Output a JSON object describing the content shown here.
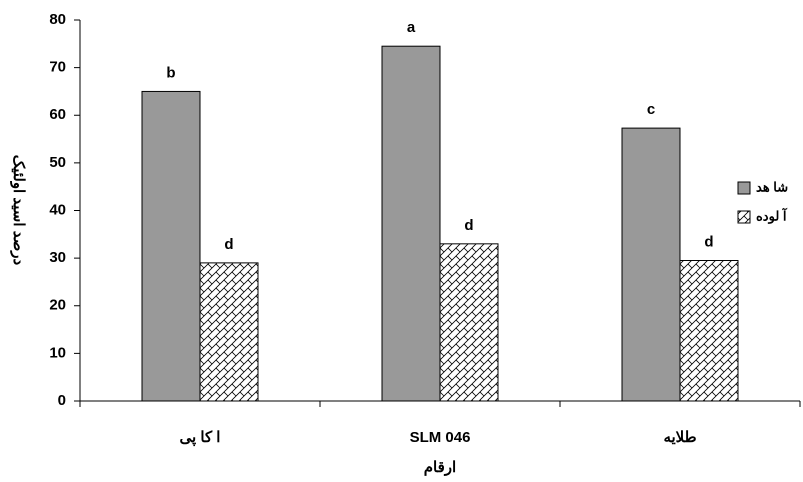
{
  "chart_data": {
    "type": "bar",
    "y_label": "درصد اسید اولئیک",
    "x_label": "ارقام",
    "categories": [
      "ا کا پی",
      "SLM 046",
      "طلایه"
    ],
    "series": [
      {
        "name": "شا هد",
        "color": "#999999",
        "values": [
          65,
          74.5,
          57.3
        ],
        "letters": [
          "b",
          "a",
          "c"
        ]
      },
      {
        "name": "آ لوده",
        "color": "#ffffff",
        "pattern": "crosshatch",
        "values": [
          29,
          33,
          29.5
        ],
        "letters": [
          "d",
          "d",
          "d"
        ]
      }
    ],
    "ylim": [
      0,
      80
    ],
    "yticks": [
      0,
      10,
      20,
      30,
      40,
      50,
      60,
      70,
      80
    ]
  }
}
